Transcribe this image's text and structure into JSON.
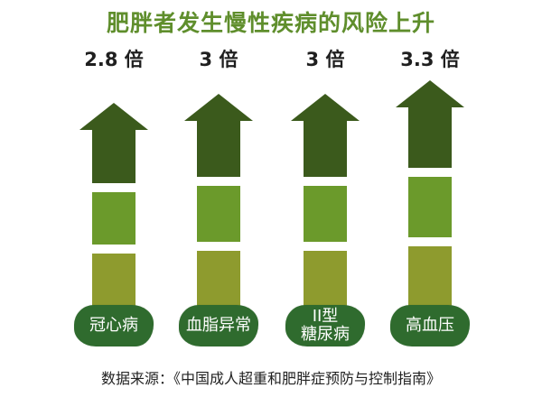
{
  "title": "肥胖者发生慢性疾病的风险上升",
  "source_note": "数据来源：《中国成人超重和肥胖症预防与控制指南》",
  "colors": {
    "title": "#5f8e2c",
    "arrow_top": "#3b5a1c",
    "arrow_mid": "#6b9a2b",
    "arrow_bottom": "#8e9b2e",
    "pill": "#2f6b2e"
  },
  "chart_data": {
    "type": "bar",
    "title": "肥胖者发生慢性疾病的风险上升",
    "categories": [
      "冠心病",
      "血脂异常",
      "II型\n糖尿病",
      "高血压"
    ],
    "values": [
      2.8,
      3,
      3,
      3.3
    ],
    "value_labels": [
      "2.8 倍",
      "3 倍",
      "3 倍",
      "3.3 倍"
    ],
    "unit": "倍"
  }
}
